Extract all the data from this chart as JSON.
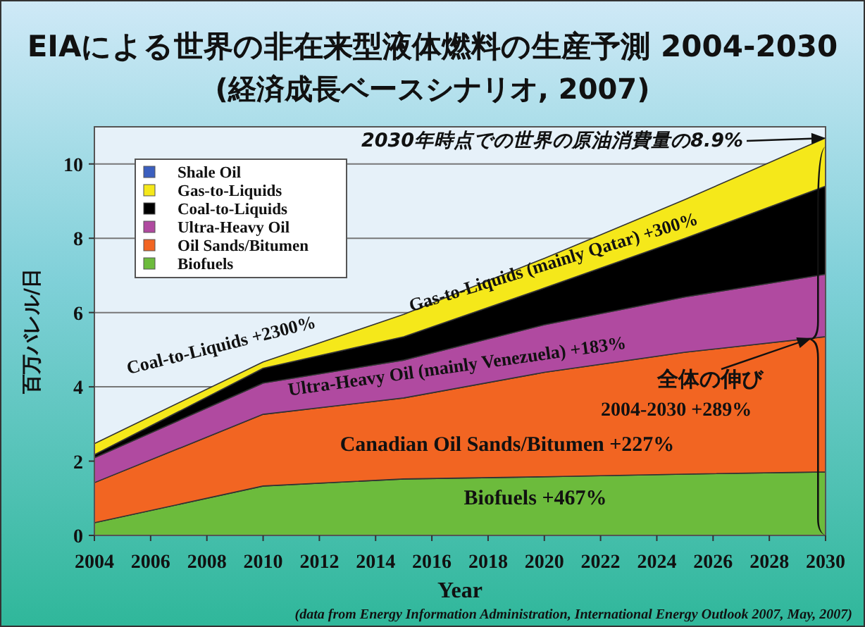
{
  "chart_data": {
    "type": "area",
    "stacked": true,
    "title": "EIAによる世界の非在来型液体燃料の生産予測 2004-2030",
    "subtitle": "(経済成長ベースシナリオ, 2007)",
    "xlabel": "Year",
    "ylabel": "百万バレル/日",
    "x": [
      2004,
      2010,
      2015,
      2020,
      2025,
      2030
    ],
    "series": [
      {
        "name": "Biofuels",
        "color": "#6cbb3c",
        "values": [
          0.34,
          1.33,
          1.52,
          1.58,
          1.65,
          1.71
        ]
      },
      {
        "name": "Oil Sands/Bitumen",
        "color": "#f26522",
        "values": [
          1.08,
          1.93,
          2.18,
          2.81,
          3.28,
          3.64
        ]
      },
      {
        "name": "Ultra-Heavy Oil",
        "color": "#b04aa0",
        "values": [
          0.67,
          0.84,
          1.02,
          1.28,
          1.49,
          1.68
        ]
      },
      {
        "name": "Coal-to-Liquids",
        "color": "#000000",
        "values": [
          0.08,
          0.4,
          0.63,
          0.99,
          1.58,
          2.37
        ]
      },
      {
        "name": "Gas-to-Liquids",
        "color": "#f5e81a",
        "values": [
          0.3,
          0.17,
          0.6,
          0.8,
          1.04,
          1.3
        ]
      },
      {
        "name": "Shale Oil",
        "color": "#3b5fbf",
        "values": [
          null,
          null,
          null,
          null,
          null,
          null
        ]
      }
    ],
    "xlim": [
      2004,
      2030
    ],
    "ylim": [
      0,
      11
    ],
    "xticks": [
      2004,
      2006,
      2008,
      2010,
      2012,
      2014,
      2016,
      2018,
      2020,
      2022,
      2024,
      2026,
      2028,
      2030
    ],
    "yticks": [
      0,
      2,
      4,
      6,
      8,
      10
    ],
    "grid": "y",
    "legend": "top left",
    "annotations": [
      "Biofuels +467%",
      "Canadian Oil Sands/Bitumen +227%",
      "Ultra-Heavy Oil (mainly Venezuela) +183%",
      "Coal-to-Liquids +2300%",
      "Gas-to-Liquids (mainly Qatar) +300%",
      "2030年時点での世界の原油消費量の8.9%",
      "全体の伸び",
      "2004-2030 +289%",
      "(data from Energy Information Administration, International Energy Outlook 2007, May, 2007)"
    ]
  }
}
